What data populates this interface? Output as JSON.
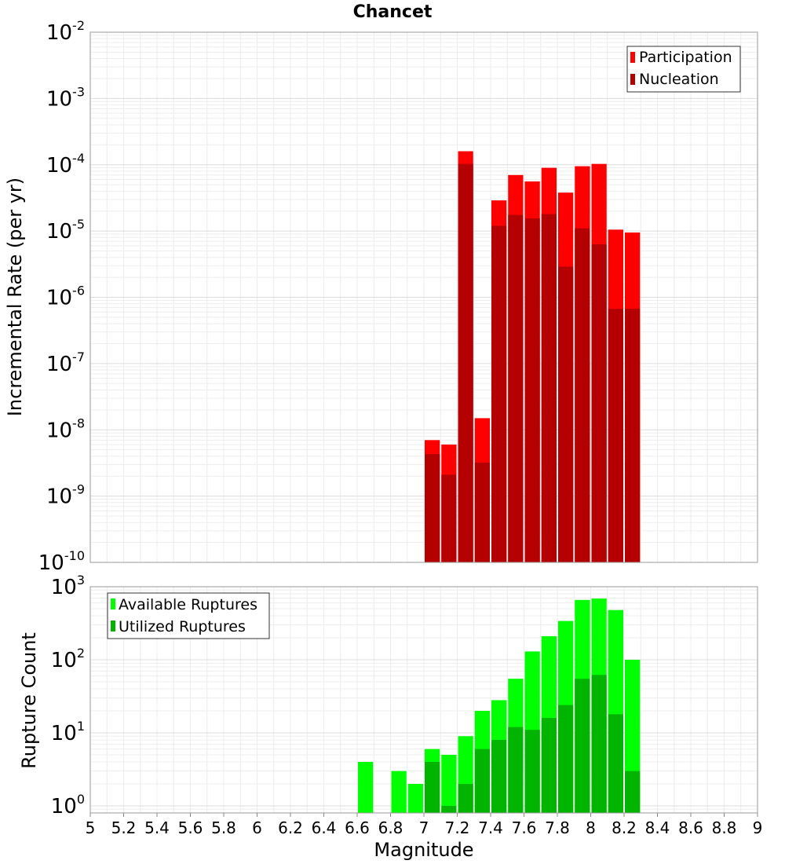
{
  "chart_data": [
    {
      "type": "bar",
      "title": "Chancet",
      "xlabel": "",
      "ylabel": "Incremental Rate (per yr)",
      "yscale": "log",
      "xlim": [
        5,
        9
      ],
      "ylim": [
        1e-10,
        0.01
      ],
      "y_ticks": [
        {
          "base": "10",
          "exp": "-10"
        },
        {
          "base": "10",
          "exp": "-9"
        },
        {
          "base": "10",
          "exp": "-8"
        },
        {
          "base": "10",
          "exp": "-7"
        },
        {
          "base": "10",
          "exp": "-6"
        },
        {
          "base": "10",
          "exp": "-5"
        },
        {
          "base": "10",
          "exp": "-4"
        },
        {
          "base": "10",
          "exp": "-3"
        },
        {
          "base": "10",
          "exp": "-2"
        }
      ],
      "grid": true,
      "legend_position": "top-right",
      "bin_width": 0.1,
      "x": [
        7.05,
        7.15,
        7.25,
        7.35,
        7.45,
        7.55,
        7.65,
        7.75,
        7.85,
        7.95,
        8.05,
        8.15,
        8.25
      ],
      "series": [
        {
          "name": "Participation",
          "color": "#ff0000",
          "values": [
            7e-09,
            6e-09,
            0.00016,
            1.5e-08,
            2.9e-05,
            7e-05,
            5.6e-05,
            9e-05,
            3.8e-05,
            9.5e-05,
            0.000103,
            1.05e-05,
            9.5e-06
          ]
        },
        {
          "name": "Nucleation",
          "color": "#b40000",
          "values": [
            4.3e-09,
            2.1e-09,
            0.000103,
            3.2e-09,
            1.2e-05,
            1.75e-05,
            1.55e-05,
            1.8e-05,
            2.9e-06,
            1.1e-05,
            6.3e-06,
            6.7e-07,
            6.7e-07
          ]
        }
      ]
    },
    {
      "type": "bar",
      "title": "",
      "xlabel": "Magnitude",
      "ylabel": "Rupture Count",
      "yscale": "log",
      "xlim": [
        5,
        9
      ],
      "ylim": [
        0.8,
        1000
      ],
      "x_ticks": [
        "5",
        "5.2",
        "5.4",
        "5.6",
        "5.8",
        "6",
        "6.2",
        "6.4",
        "6.6",
        "6.8",
        "7",
        "7.2",
        "7.4",
        "7.6",
        "7.8",
        "8",
        "8.2",
        "8.4",
        "8.6",
        "8.8",
        "9"
      ],
      "y_ticks": [
        {
          "base": "10",
          "exp": "0"
        },
        {
          "base": "10",
          "exp": "1"
        },
        {
          "base": "10",
          "exp": "2"
        },
        {
          "base": "10",
          "exp": "3"
        }
      ],
      "grid": true,
      "legend_position": "top-left",
      "bin_width": 0.1,
      "x": [
        6.65,
        6.85,
        6.95,
        7.05,
        7.15,
        7.25,
        7.35,
        7.45,
        7.55,
        7.65,
        7.75,
        7.85,
        7.95,
        8.05,
        8.15,
        8.25
      ],
      "series": [
        {
          "name": "Available Ruptures",
          "color": "#00ff00",
          "values": [
            4,
            3,
            2,
            6,
            5,
            9,
            20,
            28,
            55,
            130,
            210,
            340,
            660,
            690,
            480,
            100
          ]
        },
        {
          "name": "Utilized Ruptures",
          "color": "#00b400",
          "values": [
            0,
            0,
            0,
            4,
            1,
            2,
            6,
            8,
            12,
            11,
            16,
            24,
            55,
            62,
            18,
            3
          ]
        }
      ]
    }
  ]
}
